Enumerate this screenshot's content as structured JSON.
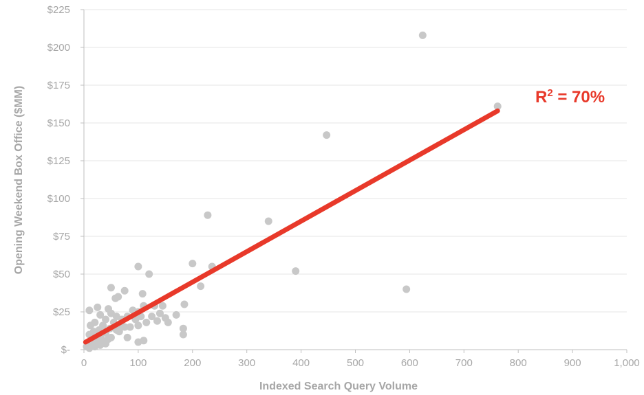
{
  "chart_data": {
    "type": "scatter",
    "title": "",
    "xlabel": "Indexed Search Query Volume",
    "ylabel": "Opening Weekend Box Office ($MM)",
    "xlim": [
      0,
      1000
    ],
    "ylim": [
      0,
      225
    ],
    "x_ticks": [
      0,
      100,
      200,
      300,
      400,
      500,
      600,
      700,
      800,
      900,
      1000
    ],
    "x_tick_labels": [
      "0",
      "100",
      "200",
      "300",
      "400",
      "500",
      "600",
      "700",
      "800",
      "900",
      "1,000"
    ],
    "y_ticks": [
      0,
      25,
      50,
      75,
      100,
      125,
      150,
      175,
      200,
      225
    ],
    "y_tick_labels": [
      "$-",
      "$25",
      "$50",
      "$75",
      "$100",
      "$125",
      "$150",
      "$175",
      "$200",
      "$225"
    ],
    "grid": "horizontal",
    "point_color": "#c8c8c8",
    "trend_color": "#e8392a",
    "points": [
      [
        624,
        208
      ],
      [
        762,
        161
      ],
      [
        447,
        142
      ],
      [
        228,
        89
      ],
      [
        340,
        85
      ],
      [
        390,
        52
      ],
      [
        594,
        40
      ],
      [
        200,
        57
      ],
      [
        236,
        55
      ],
      [
        100,
        55
      ],
      [
        120,
        50
      ],
      [
        215,
        42
      ],
      [
        50,
        41
      ],
      [
        75,
        39
      ],
      [
        108,
        37
      ],
      [
        63,
        35
      ],
      [
        58,
        34
      ],
      [
        185,
        30
      ],
      [
        145,
        29
      ],
      [
        110,
        29
      ],
      [
        130,
        29
      ],
      [
        25,
        28
      ],
      [
        45,
        27
      ],
      [
        90,
        26
      ],
      [
        10,
        26
      ],
      [
        100,
        25
      ],
      [
        30,
        23
      ],
      [
        50,
        24
      ],
      [
        140,
        24
      ],
      [
        170,
        23
      ],
      [
        60,
        22
      ],
      [
        80,
        22
      ],
      [
        105,
        22
      ],
      [
        125,
        22
      ],
      [
        150,
        21
      ],
      [
        40,
        20
      ],
      [
        70,
        20
      ],
      [
        95,
        20
      ],
      [
        135,
        19
      ],
      [
        155,
        18
      ],
      [
        115,
        18
      ],
      [
        20,
        18
      ],
      [
        55,
        18
      ],
      [
        12,
        16
      ],
      [
        35,
        16
      ],
      [
        65,
        16
      ],
      [
        85,
        15
      ],
      [
        100,
        16
      ],
      [
        75,
        15
      ],
      [
        183,
        14
      ],
      [
        48,
        14
      ],
      [
        28,
        13
      ],
      [
        60,
        13
      ],
      [
        18,
        12
      ],
      [
        40,
        11
      ],
      [
        65,
        12
      ],
      [
        183,
        10
      ],
      [
        10,
        10
      ],
      [
        30,
        9
      ],
      [
        20,
        8
      ],
      [
        50,
        8
      ],
      [
        80,
        8
      ],
      [
        45,
        7
      ],
      [
        15,
        7
      ],
      [
        35,
        6
      ],
      [
        110,
        6
      ],
      [
        25,
        5
      ],
      [
        100,
        5
      ],
      [
        8,
        5
      ],
      [
        15,
        4
      ],
      [
        30,
        3
      ],
      [
        5,
        2
      ],
      [
        20,
        2
      ],
      [
        40,
        4
      ],
      [
        10,
        1
      ]
    ],
    "trendline": {
      "x": [
        3,
        762
      ],
      "y": [
        5,
        158
      ]
    },
    "annotation": {
      "base": "R",
      "superscript": "2",
      "rest": " = 70%"
    }
  }
}
